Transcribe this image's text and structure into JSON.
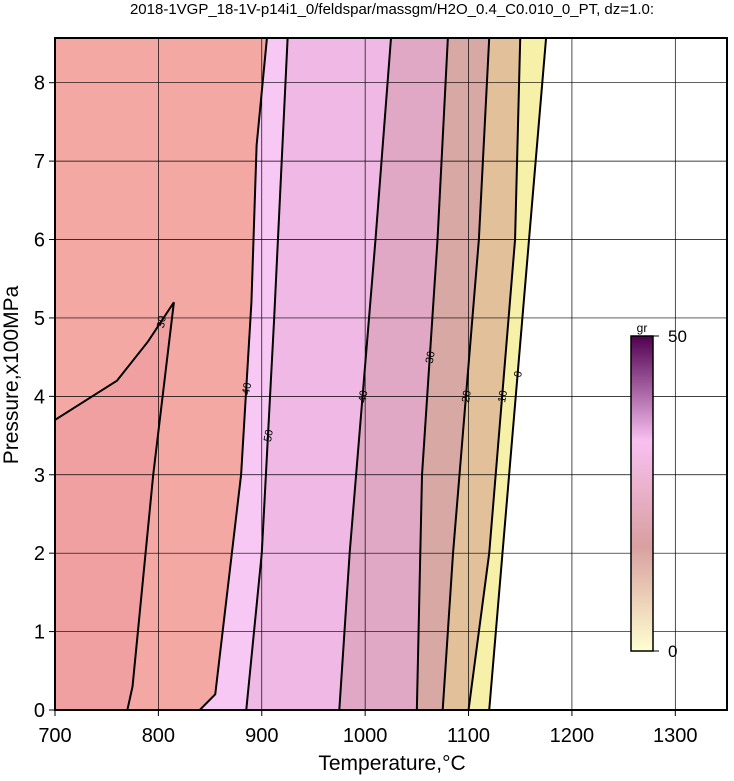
{
  "chart_data": {
    "type": "contour",
    "title": "2018-1VGP_18-1V-p14i1_0/feldspar/massgm/H2O_0.4_C0.010_0_PT, dz=1.0:",
    "x_label": "Temperature,°C",
    "y_label": "Pressure,x100MPa",
    "xlim": [
      700,
      1350
    ],
    "ylim": [
      0,
      8.57
    ],
    "xticks": [
      700,
      800,
      900,
      1000,
      1100,
      1200,
      1300
    ],
    "yticks": [
      0,
      1,
      2,
      3,
      4,
      5,
      6,
      7,
      8
    ],
    "grid": true,
    "contours": [
      {
        "level": 0,
        "color": "#f6f0a8",
        "x": [
          1120,
          1175
        ],
        "y": [
          0,
          8.57
        ]
      },
      {
        "level": 10,
        "color": "#e2c09a",
        "x": [
          1100,
          1120,
          1145,
          1150
        ],
        "y": [
          0,
          2,
          6,
          8.57
        ]
      },
      {
        "level": 20,
        "color": "#d8a8a4",
        "x": [
          1075,
          1085,
          1110,
          1120
        ],
        "y": [
          0,
          2,
          6,
          8.57
        ]
      },
      {
        "level": 30,
        "color": "#e0a8c4",
        "x": [
          1050,
          1055,
          1070,
          1080
        ],
        "y": [
          0,
          3,
          6,
          8.57
        ]
      },
      {
        "level": 40,
        "color": "#f0b8e4",
        "x": [
          975,
          985,
          1010,
          1025
        ],
        "y": [
          0,
          2,
          6,
          8.57
        ]
      },
      {
        "level": 50,
        "color": "#f8c8f4",
        "x": [
          885,
          900,
          912,
          925
        ],
        "y": [
          0,
          2,
          5,
          8.57
        ]
      },
      {
        "level": 40,
        "color": "#f4a8a4",
        "x": [
          840,
          855,
          880,
          890,
          895,
          905
        ],
        "y": [
          0,
          0.2,
          3,
          5.2,
          7.2,
          8.57
        ]
      },
      {
        "level": 30,
        "color": "#f0a0a0",
        "x": [
          770,
          775,
          795,
          815,
          790,
          760,
          700
        ],
        "y": [
          0,
          0.3,
          3,
          5.2,
          4.7,
          4.2,
          3.7
        ]
      }
    ],
    "colorbar": {
      "label": "gr",
      "lim": [
        0,
        50
      ],
      "ticks": [
        0,
        50
      ],
      "colors": [
        "#ffffd0",
        "#d8a0a0",
        "#f8c0f0",
        "#500050"
      ]
    }
  }
}
